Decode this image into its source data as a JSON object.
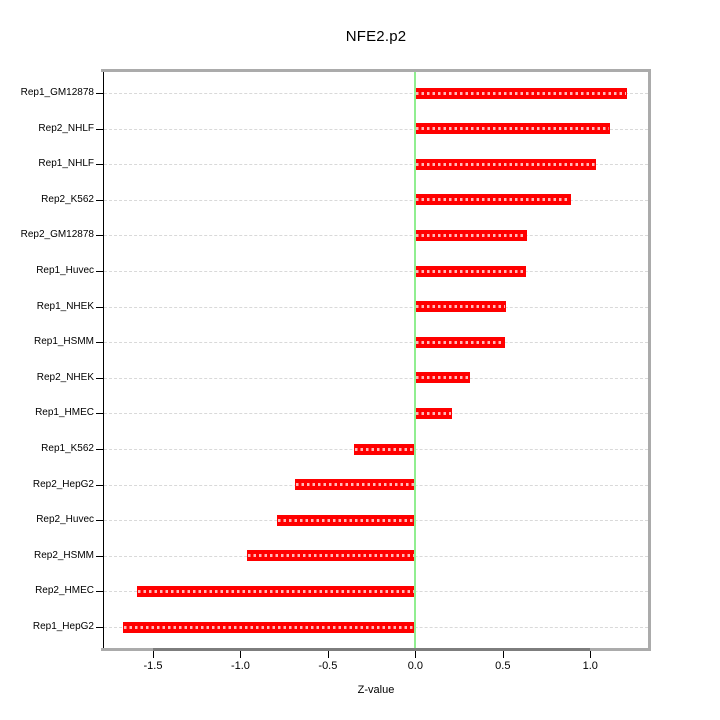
{
  "title": "NFE2.p2",
  "chart_data": {
    "type": "bar",
    "orientation": "horizontal",
    "title": "NFE2.p2",
    "xlabel": "Z-value",
    "ylabel": "",
    "categories": [
      "Rep1_GM12878",
      "Rep2_NHLF",
      "Rep1_NHLF",
      "Rep2_K562",
      "Rep2_GM12878",
      "Rep1_Huvec",
      "Rep1_NHEK",
      "Rep1_HSMM",
      "Rep2_NHEK",
      "Rep1_HMEC",
      "Rep1_K562",
      "Rep2_HepG2",
      "Rep2_Huvec",
      "Rep2_HSMM",
      "Rep2_HMEC",
      "Rep1_HepG2"
    ],
    "values": [
      1.21,
      1.11,
      1.03,
      0.89,
      0.64,
      0.63,
      0.52,
      0.51,
      0.31,
      0.21,
      -0.35,
      -0.69,
      -0.79,
      -0.96,
      -1.59,
      -1.67
    ],
    "x_ticks": [
      -1.5,
      -1.0,
      -0.5,
      0.0,
      0.5,
      1.0
    ],
    "x_tick_labels": [
      "-1.5",
      "-1.0",
      "-0.5",
      "0.0",
      "0.5",
      "1.0"
    ],
    "xlim": [
      -1.78,
      1.33
    ],
    "bar_origin": 0,
    "grid": "dashed horizontal line per category, full plot width",
    "zero_line": true,
    "legend": null,
    "colors": {
      "bar": "#ff0000",
      "bar_dash_overlay": "rgba(255,255,255,0.72)",
      "zero_line": "#90ee90",
      "grid": "#d9d9d9",
      "box": "#ababab",
      "axis_segment": "#7d7d7d",
      "y_axis": "#000000",
      "text": "#000000",
      "background": "#ffffff"
    }
  }
}
